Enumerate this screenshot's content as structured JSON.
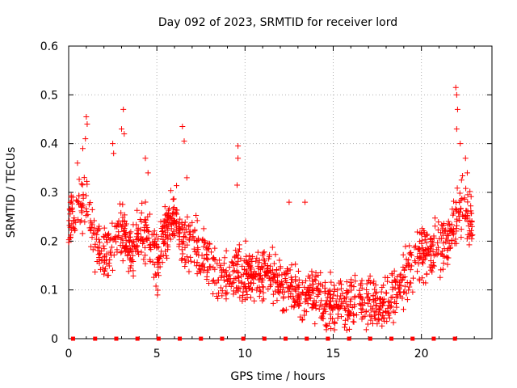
{
  "chart_data": {
    "type": "scatter",
    "title": "Day 092 of 2023, SRMTID for receiver lord",
    "xlabel": "GPS time / hours",
    "ylabel": "SRMTID / TECUs",
    "xlim": [
      0,
      24
    ],
    "ylim": [
      0,
      0.6
    ],
    "x_ticks": [
      "0",
      "5",
      "10",
      "15",
      "20"
    ],
    "x_tick_values": [
      0,
      5,
      10,
      15,
      20
    ],
    "y_ticks": [
      "0",
      "0.1",
      "0.2",
      "0.3",
      "0.4",
      "0.5",
      "0.6"
    ],
    "y_tick_values": [
      0,
      0.1,
      0.2,
      0.3,
      0.4,
      0.5,
      0.6
    ],
    "grid": true,
    "marker": "plus",
    "color": "#ff0000",
    "series": [
      {
        "name": "SRMTID",
        "profile_x": [
          0,
          0.5,
          1,
          1.5,
          2,
          2.5,
          3,
          3.5,
          4,
          4.5,
          5,
          5.5,
          6,
          6.5,
          7,
          7.5,
          8,
          8.5,
          9,
          9.5,
          10,
          10.5,
          11,
          11.5,
          12,
          12.5,
          13,
          13.5,
          14,
          14.5,
          15,
          15.5,
          16,
          16.5,
          17,
          17.5,
          18,
          18.5,
          19,
          19.5,
          20,
          20.5,
          21,
          21.5,
          22,
          22.5,
          22.9
        ],
        "profile_y": [
          0.24,
          0.26,
          0.28,
          0.2,
          0.16,
          0.19,
          0.23,
          0.18,
          0.21,
          0.22,
          0.15,
          0.22,
          0.25,
          0.2,
          0.19,
          0.17,
          0.15,
          0.14,
          0.12,
          0.13,
          0.13,
          0.12,
          0.14,
          0.13,
          0.11,
          0.12,
          0.09,
          0.09,
          0.08,
          0.08,
          0.07,
          0.07,
          0.07,
          0.08,
          0.07,
          0.06,
          0.07,
          0.09,
          0.12,
          0.14,
          0.17,
          0.18,
          0.19,
          0.2,
          0.25,
          0.26,
          0.24
        ],
        "spikes": [
          {
            "x": 0.15,
            "y": 0.29
          },
          {
            "x": 0.5,
            "y": 0.36
          },
          {
            "x": 0.8,
            "y": 0.39
          },
          {
            "x": 0.95,
            "y": 0.41
          },
          {
            "x": 1.0,
            "y": 0.455
          },
          {
            "x": 1.05,
            "y": 0.44
          },
          {
            "x": 2.5,
            "y": 0.4
          },
          {
            "x": 2.55,
            "y": 0.38
          },
          {
            "x": 3.0,
            "y": 0.43
          },
          {
            "x": 3.1,
            "y": 0.47
          },
          {
            "x": 3.15,
            "y": 0.42
          },
          {
            "x": 4.35,
            "y": 0.37
          },
          {
            "x": 4.5,
            "y": 0.34
          },
          {
            "x": 6.45,
            "y": 0.435
          },
          {
            "x": 6.55,
            "y": 0.405
          },
          {
            "x": 6.7,
            "y": 0.33
          },
          {
            "x": 9.6,
            "y": 0.395
          },
          {
            "x": 9.6,
            "y": 0.37
          },
          {
            "x": 9.55,
            "y": 0.315
          },
          {
            "x": 13.4,
            "y": 0.28
          },
          {
            "x": 12.5,
            "y": 0.28
          },
          {
            "x": 21.95,
            "y": 0.515
          },
          {
            "x": 22.0,
            "y": 0.5
          },
          {
            "x": 22.05,
            "y": 0.47
          },
          {
            "x": 22.0,
            "y": 0.43
          },
          {
            "x": 22.2,
            "y": 0.4
          },
          {
            "x": 22.5,
            "y": 0.37
          },
          {
            "x": 22.6,
            "y": 0.34
          }
        ],
        "zero_markers_x": [
          0.25,
          1.5,
          2.7,
          3.9,
          5.1,
          6.3,
          7.5,
          8.7,
          9.9,
          11.1,
          12.3,
          13.5,
          14.7,
          15.9,
          17.1,
          18.3,
          19.5,
          20.7,
          21.9
        ]
      }
    ]
  }
}
